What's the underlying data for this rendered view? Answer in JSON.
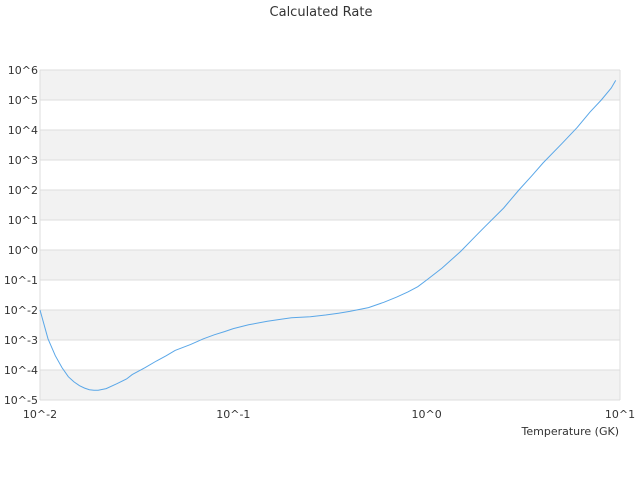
{
  "chart_data": {
    "type": "line",
    "title": "Calculated Rate",
    "xlabel": "Temperature (GK)",
    "ylabel": "",
    "x_scale": "log",
    "y_scale": "log",
    "xlim": [
      0.01,
      10
    ],
    "ylim": [
      1e-05,
      1000000
    ],
    "x_ticks": [
      "10^-2",
      "10^-1",
      "10^0",
      "10^1"
    ],
    "y_ticks": [
      "10^-5",
      "10^-4",
      "10^-3",
      "10^-2",
      "10^-1",
      "10^0",
      "10^1",
      "10^2",
      "10^3",
      "10^4",
      "10^5",
      "10^6"
    ],
    "grid": "alternating horizontal bands",
    "legend": "none",
    "colors": {
      "line": "#5aa7e8",
      "band": "#f2f2f2",
      "gridline": "#dddddd"
    },
    "series": [
      {
        "x": [
          0.01,
          0.011,
          0.012,
          0.013,
          0.014,
          0.015,
          0.016,
          0.017,
          0.018,
          0.019,
          0.02,
          0.022,
          0.025,
          0.028,
          0.03,
          0.035,
          0.04,
          0.045,
          0.05,
          0.06,
          0.07,
          0.08,
          0.09,
          0.1,
          0.12,
          0.15,
          0.18,
          0.2,
          0.25,
          0.3,
          0.35,
          0.4,
          0.5,
          0.6,
          0.7,
          0.8,
          0.9,
          1.0,
          1.2,
          1.5,
          1.8,
          2.0,
          2.5,
          3.0,
          3.5,
          4.0,
          5.0,
          6.0,
          7.0,
          8.0,
          9.0,
          9.5
        ],
        "y": [
          0.01,
          0.0011,
          0.0003,
          0.00012,
          6e-05,
          4e-05,
          3e-05,
          2.5e-05,
          2.2e-05,
          2.1e-05,
          2.1e-05,
          2.4e-05,
          3.5e-05,
          5e-05,
          7e-05,
          0.00012,
          0.0002,
          0.0003,
          0.00045,
          0.0007,
          0.0011,
          0.0015,
          0.0019,
          0.0024,
          0.0032,
          0.0042,
          0.005,
          0.0055,
          0.006,
          0.0068,
          0.0078,
          0.009,
          0.012,
          0.018,
          0.027,
          0.04,
          0.06,
          0.1,
          0.25,
          0.9,
          3.0,
          6.0,
          25.0,
          100.0,
          300.0,
          800.0,
          3500.0,
          12000.0,
          40000.0,
          100000.0,
          250000.0,
          450000.0
        ]
      }
    ]
  }
}
